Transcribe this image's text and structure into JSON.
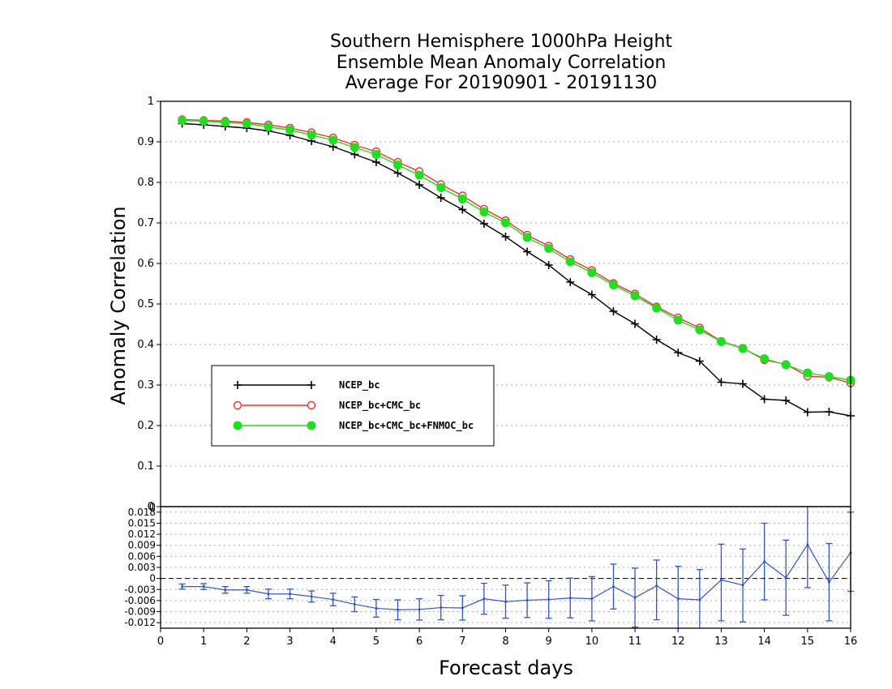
{
  "chart_data": [
    {
      "type": "line",
      "title_lines": [
        "Southern Hemisphere 1000hPa Height",
        "Ensemble Mean Anomaly Correlation",
        "Average For 20190901 - 20191130"
      ],
      "ylabel": "Anomaly Correlation",
      "ylim": [
        0,
        1
      ],
      "yticks": [
        "0",
        "0.1",
        "0.2",
        "0.3",
        "0.4",
        "0.5",
        "0.6",
        "0.7",
        "0.8",
        "0.9",
        "1"
      ],
      "grid": true,
      "legend_placement": "lower-left",
      "x": [
        0.5,
        1,
        1.5,
        2,
        2.5,
        3,
        3.5,
        4,
        4.5,
        5,
        5.5,
        6,
        6.5,
        7,
        7.5,
        8,
        8.5,
        9,
        9.5,
        10,
        10.5,
        11,
        11.5,
        12,
        12.5,
        13,
        13.5,
        14,
        14.5,
        15,
        15.5,
        16
      ],
      "series": [
        {
          "name": "NCEP_bc",
          "color": "#000000",
          "marker": "plus",
          "values": [
            0.945,
            0.942,
            0.938,
            0.934,
            0.927,
            0.916,
            0.902,
            0.888,
            0.869,
            0.85,
            0.823,
            0.794,
            0.762,
            0.733,
            0.698,
            0.666,
            0.629,
            0.596,
            0.554,
            0.523,
            0.482,
            0.451,
            0.412,
            0.38,
            0.359,
            0.307,
            0.303,
            0.265,
            0.262,
            0.233,
            0.234,
            0.224
          ]
        },
        {
          "name": "NCEP_bc+CMC_bc",
          "color": "#ee3333",
          "marker": "open-circle",
          "values": [
            0.955,
            0.953,
            0.951,
            0.948,
            0.942,
            0.934,
            0.923,
            0.91,
            0.892,
            0.876,
            0.85,
            0.827,
            0.795,
            0.767,
            0.734,
            0.706,
            0.67,
            0.643,
            0.61,
            0.583,
            0.551,
            0.525,
            0.493,
            0.466,
            0.441,
            0.408,
            0.391,
            0.362,
            0.351,
            0.322,
            0.319,
            0.305
          ]
        },
        {
          "name": "NCEP_bc+CMC_bc+FNMOC_bc",
          "color": "#22dd22",
          "marker": "filled-circle",
          "values": [
            0.953,
            0.951,
            0.948,
            0.945,
            0.937,
            0.929,
            0.917,
            0.904,
            0.886,
            0.869,
            0.843,
            0.818,
            0.787,
            0.759,
            0.727,
            0.7,
            0.664,
            0.637,
            0.604,
            0.577,
            0.547,
            0.52,
            0.49,
            0.46,
            0.436,
            0.407,
            0.39,
            0.365,
            0.35,
            0.33,
            0.321,
            0.312
          ]
        }
      ]
    },
    {
      "type": "line",
      "subtype": "difference-with-error-bars",
      "xlabel": "Forecast days",
      "xlim": [
        0,
        16
      ],
      "xticks": [
        "0",
        "1",
        "2",
        "3",
        "4",
        "5",
        "6",
        "7",
        "8",
        "9",
        "10",
        "11",
        "12",
        "13",
        "14",
        "15",
        "16"
      ],
      "ylim": [
        -0.0135,
        0.0195
      ],
      "yticks": [
        "-0.012",
        "-0.009",
        "-0.006",
        "-0.003",
        "0",
        "0.003",
        "0.006",
        "0.009",
        "0.012",
        "0.015",
        "0.018"
      ],
      "top_label": "0",
      "grid": true,
      "reference_line": 0,
      "x": [
        0.5,
        1,
        1.5,
        2,
        2.5,
        3,
        3.5,
        4,
        4.5,
        5,
        5.5,
        6,
        6.5,
        7,
        7.5,
        8,
        8.5,
        9,
        9.5,
        10,
        10.5,
        11,
        11.5,
        12,
        12.5,
        13,
        13.5,
        14,
        14.5,
        15,
        15.5,
        16
      ],
      "series": [
        {
          "color": "#3355cc",
          "values": [
            -0.0022,
            -0.0022,
            -0.0031,
            -0.0031,
            -0.0042,
            -0.0042,
            -0.0049,
            -0.0057,
            -0.007,
            -0.0081,
            -0.0085,
            -0.0084,
            -0.0079,
            -0.008,
            -0.0055,
            -0.0063,
            -0.0059,
            -0.0057,
            -0.0053,
            -0.0055,
            -0.0022,
            -0.0052,
            -0.002,
            -0.0055,
            -0.0058,
            -0.0004,
            -0.0018,
            0.0046,
            0.0002,
            0.0092,
            -0.001,
            0.007
          ],
          "error_low": [
            -0.0029,
            -0.003,
            -0.004,
            -0.004,
            -0.0055,
            -0.0055,
            -0.0064,
            -0.0074,
            -0.009,
            -0.0105,
            -0.0112,
            -0.0113,
            -0.0112,
            -0.0113,
            -0.0097,
            -0.0108,
            -0.0106,
            -0.0108,
            -0.0107,
            -0.0115,
            -0.0083,
            -0.0132,
            -0.0112,
            -0.014,
            -0.014,
            -0.0115,
            -0.0118,
            -0.0058,
            -0.01,
            -0.0025,
            -0.0115,
            -0.0035
          ],
          "error_high": [
            -0.0015,
            -0.0014,
            -0.0022,
            -0.0022,
            -0.0029,
            -0.0029,
            -0.0034,
            -0.004,
            -0.005,
            -0.0057,
            -0.0058,
            -0.0055,
            -0.0046,
            -0.0047,
            -0.0013,
            -0.0018,
            -0.0012,
            -0.0006,
            0.0001,
            0.0005,
            0.0039,
            0.0028,
            0.005,
            0.0033,
            0.0024,
            0.0093,
            0.008,
            0.015,
            0.0104,
            0.02,
            0.0095,
            0.018
          ]
        }
      ]
    }
  ]
}
